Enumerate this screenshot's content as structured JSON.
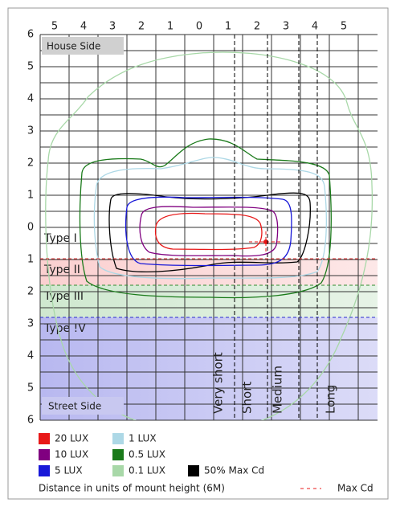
{
  "x_labels": [
    "5",
    "4",
    "3",
    "2",
    "1",
    "0",
    "1",
    "2",
    "3",
    "4",
    "5"
  ],
  "y_labels": [
    "6",
    "5",
    "4",
    "3",
    "2",
    "1",
    "0",
    "1",
    "2",
    "3",
    "4",
    "5",
    "6"
  ],
  "corner_labels": {
    "top": "House Side",
    "bottom": "Street Side"
  },
  "zones": [
    {
      "label": "Type I",
      "color": "#ffffff",
      "line": "#ffffff"
    },
    {
      "label": "Type II",
      "color": "#fbd0d0",
      "line": "#e03030"
    },
    {
      "label": "Type III",
      "color": "#cfe8cf",
      "line": "#2e8b2e"
    },
    {
      "label": "Type !V",
      "color": "#b8b8f0",
      "line": "#2a2ad0"
    }
  ],
  "distance_lines": [
    "Very short",
    "Short",
    "Medium",
    "Long"
  ],
  "legend": [
    {
      "label": "20 LUX",
      "color": "#e81818"
    },
    {
      "label": "1 LUX",
      "color": "#add8e6"
    },
    {
      "label": "10 LUX",
      "color": "#800080"
    },
    {
      "label": "0.5 LUX",
      "color": "#1a7a1a"
    },
    {
      "label": "5 LUX",
      "color": "#1818d8"
    },
    {
      "label": "0.1 LUX",
      "color": "#a8d8a8"
    },
    {
      "label": "50% Max Cd",
      "color": "#000000"
    }
  ],
  "footer": {
    "note": "Distance in units of mount height (6M)",
    "max_cd": "Max Cd",
    "max_cd_color": "#e81818"
  }
}
